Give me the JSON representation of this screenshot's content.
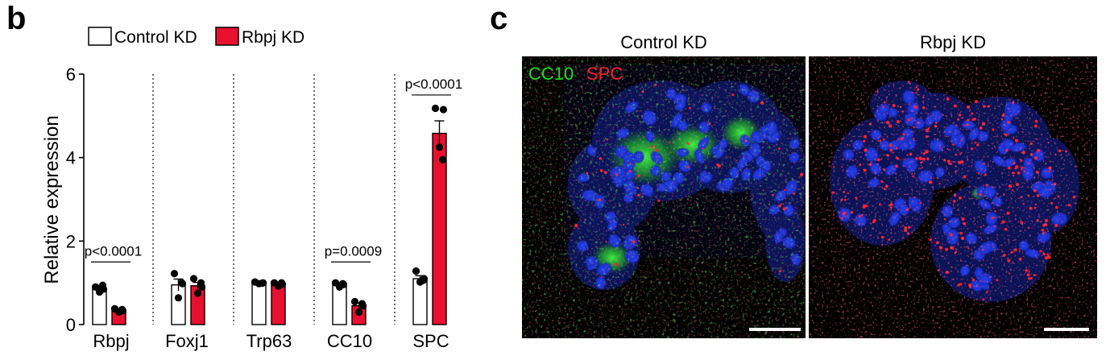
{
  "panels": {
    "b": {
      "letter": "b"
    },
    "c": {
      "letter": "c"
    }
  },
  "chart_data": {
    "type": "bar",
    "title": "",
    "xlabel": "",
    "ylabel": "Relative expression",
    "ylim": [
      0,
      6
    ],
    "yticks": [
      "0",
      "2",
      "4",
      "6"
    ],
    "grid": false,
    "legend_position": "top",
    "categories": [
      "Rbpj",
      "Foxj1",
      "Trp63",
      "CC10",
      "SPC"
    ],
    "series": [
      {
        "name": "Control KD",
        "color": "#ffffff",
        "edge": "#000000",
        "values": [
          0.87,
          0.95,
          1.0,
          0.97,
          1.1
        ],
        "errors": [
          0.07,
          0.14,
          0.02,
          0.04,
          0.07
        ],
        "points": [
          [
            0.9,
            0.85,
            0.78,
            0.94
          ],
          [
            1.22,
            0.98,
            0.64,
            1.0
          ],
          [
            1.02,
            1.0,
            0.98,
            0.99
          ],
          [
            1.0,
            0.96,
            0.9,
            0.98
          ],
          [
            1.28,
            1.1,
            1.02,
            1.06
          ]
        ]
      },
      {
        "name": "Rbpj KD",
        "color": "#e8102e",
        "edge": "#000000",
        "values": [
          0.33,
          0.93,
          0.97,
          0.45,
          4.58
        ],
        "errors": [
          0.03,
          0.08,
          0.03,
          0.07,
          0.3
        ],
        "points": [
          [
            0.38,
            0.33,
            0.3,
            0.36
          ],
          [
            1.1,
            0.9,
            0.75,
            1.0
          ],
          [
            1.0,
            0.97,
            0.92,
            1.0
          ],
          [
            0.55,
            0.45,
            0.3,
            0.5
          ],
          [
            5.18,
            5.15,
            4.25,
            3.95
          ]
        ]
      }
    ],
    "annotations": [
      {
        "category": "Rbpj",
        "text": "p<0.0001",
        "y": 1.5
      },
      {
        "category": "CC10",
        "text": "p=0.0009",
        "y": 1.5
      },
      {
        "category": "SPC",
        "text": "p<0.0001",
        "y": 5.5
      }
    ]
  },
  "micrographs": [
    {
      "title": "Control KD",
      "stain_labels": [
        {
          "text": "CC10",
          "color": "#16e016"
        },
        {
          "text": "SPC",
          "color": "#ff1f2f"
        }
      ]
    },
    {
      "title": "Rbpj KD"
    }
  ]
}
